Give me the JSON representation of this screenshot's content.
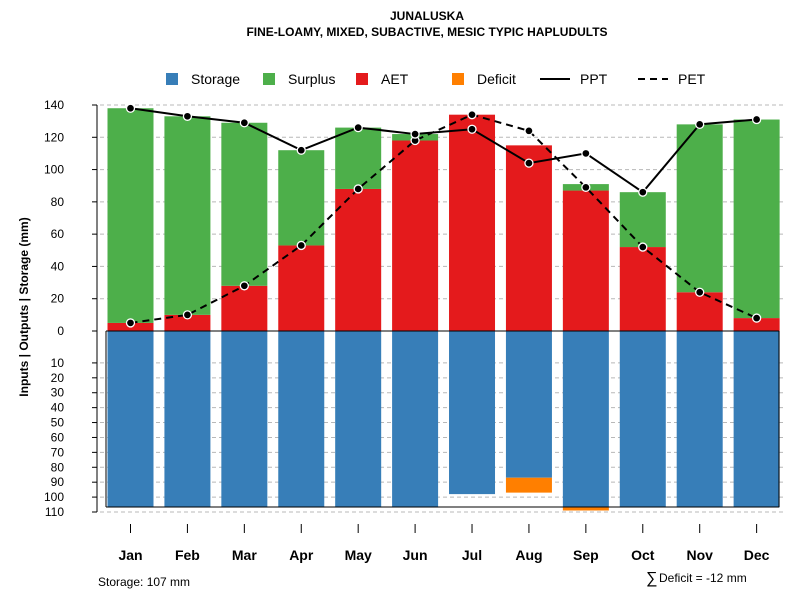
{
  "chart_data": {
    "type": "bar",
    "title": "JUNALUSKA",
    "subtitle": "FINE-LOAMY, MIXED, SUBACTIVE, MESIC TYPIC HAPLUDULTS",
    "ylabel": "Inputs | Outputs | Storage    (mm)",
    "categories": [
      "Jan",
      "Feb",
      "Mar",
      "Apr",
      "May",
      "Jun",
      "Jul",
      "Aug",
      "Sep",
      "Oct",
      "Nov",
      "Dec"
    ],
    "upper_ticks": [
      "0",
      "20",
      "40",
      "60",
      "80",
      "100",
      "120",
      "140"
    ],
    "lower_ticks": [
      "10",
      "20",
      "30",
      "40",
      "50",
      "60",
      "70",
      "80",
      "90",
      "100",
      "110"
    ],
    "upper_ylim": [
      0,
      140
    ],
    "lower_ylim": [
      0,
      110
    ],
    "legend": [
      {
        "label": "Storage",
        "kind": "box",
        "color": "#377EB8"
      },
      {
        "label": "Surplus",
        "kind": "box",
        "color": "#4DAF4A"
      },
      {
        "label": "AET",
        "kind": "box",
        "color": "#E41A1C"
      },
      {
        "label": "Deficit",
        "kind": "box",
        "color": "#FF7F00"
      },
      {
        "label": "PPT",
        "kind": "solid-line",
        "color": "#000000"
      },
      {
        "label": "PET",
        "kind": "dashed-line",
        "color": "#000000"
      }
    ],
    "series": [
      {
        "name": "AET",
        "color": "#E41A1C",
        "values": [
          5,
          10,
          28,
          53,
          88,
          118,
          134,
          115,
          87,
          52,
          24,
          8
        ]
      },
      {
        "name": "Surplus",
        "color": "#4DAF4A",
        "values": [
          133,
          123,
          101,
          59,
          38,
          4,
          0,
          0,
          4,
          34,
          104,
          123
        ]
      },
      {
        "name": "PPT",
        "color": "#000000",
        "values": [
          138,
          133,
          129,
          112,
          126,
          122,
          125,
          104,
          110,
          86,
          128,
          131
        ]
      },
      {
        "name": "PET",
        "color": "#000000",
        "values": [
          5,
          10,
          28,
          53,
          88,
          118,
          134,
          124,
          89,
          52,
          24,
          8
        ]
      },
      {
        "name": "Storage",
        "color": "#377EB8",
        "values": [
          107,
          107,
          107,
          107,
          107,
          107,
          98,
          87,
          107,
          107,
          107,
          107
        ]
      },
      {
        "name": "Deficit",
        "color": "#FF7F00",
        "values": [
          0,
          0,
          0,
          0,
          0,
          0,
          0,
          10,
          2,
          0,
          0,
          0
        ]
      }
    ],
    "storage_text": "Storage: 107 mm",
    "deficit_symbol": "∑",
    "deficit_text": "Deficit = -12 mm"
  }
}
